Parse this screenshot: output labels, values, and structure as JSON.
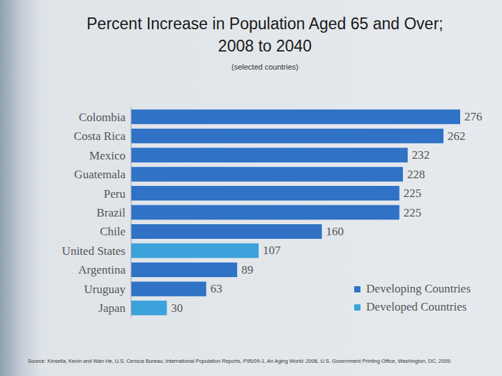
{
  "chart_data": {
    "type": "bar",
    "orientation": "horizontal",
    "stacked": true,
    "data_labels": true,
    "tick_labels": "y",
    "legend": "lower right",
    "title": "Percent Increase in Population Aged 65 and Over; 2008 to 2040",
    "subtitle": "(selected countries)",
    "annotations": [
      "Source: Kinsella, Kevin and Wan He, U.S. Census Bureau, International Population Reports, P95/09-1, An Aging World: 2008, U.S. Government Printing Office, Washington, DC, 2009."
    ],
    "categories": [
      "Colombia",
      "Costa Rica",
      "Mexico",
      "Guatemala",
      "Peru",
      "Brazil",
      "Chile",
      "United States",
      "Argentina",
      "Uruguay",
      "Japan"
    ],
    "xlim": [
      0,
      276
    ],
    "series": [
      {
        "name": "Developing Countries",
        "color": "#2f72c6",
        "values": [
          276,
          262,
          232,
          228,
          225,
          225,
          160,
          null,
          89,
          63,
          null
        ]
      },
      {
        "name": "Developed Countries",
        "color": "#3ba2db",
        "values": [
          null,
          null,
          null,
          null,
          null,
          null,
          null,
          107,
          null,
          null,
          30
        ]
      }
    ]
  }
}
